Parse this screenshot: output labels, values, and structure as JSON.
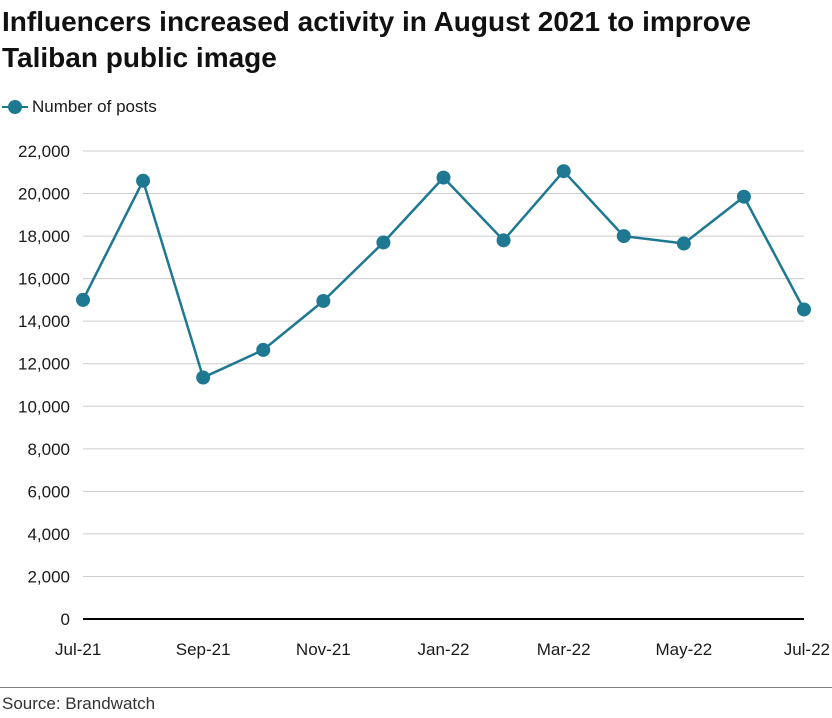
{
  "title": "Influencers increased activity in August 2021 to improve Taliban public image",
  "source": "Source: Brandwatch",
  "colors": {
    "series": "#1f7891",
    "grid": "#cccccc",
    "axis": "#000000",
    "text": "#1a1a1a"
  },
  "chart_data": {
    "type": "line",
    "title": "Influencers increased activity in August 2021 to improve Taliban public image",
    "xlabel": "",
    "ylabel": "",
    "legend": "top-left",
    "grid": true,
    "x": [
      "Jul-21",
      "Aug-21",
      "Sep-21",
      "Oct-21",
      "Nov-21",
      "Dec-21",
      "Jan-22",
      "Feb-22",
      "Mar-22",
      "Apr-22",
      "May-22",
      "Jun-22",
      "Jul-22"
    ],
    "x_tick_labels": [
      "Jul-21",
      "",
      "Sep-21",
      "",
      "Nov-21",
      "",
      "Jan-22",
      "",
      "Mar-22",
      "",
      "May-22",
      "",
      "Jul-22"
    ],
    "ylim": [
      0,
      22000
    ],
    "y_ticks": [
      0,
      2000,
      4000,
      6000,
      8000,
      10000,
      12000,
      14000,
      16000,
      18000,
      20000,
      22000
    ],
    "y_tick_labels": [
      "0",
      "2,000",
      "4,000",
      "6,000",
      "8,000",
      "10,000",
      "12,000",
      "14,000",
      "16,000",
      "18,000",
      "20,000",
      "22,000"
    ],
    "series": [
      {
        "name": "Number of posts",
        "values": [
          15000,
          20600,
          11350,
          12650,
          14950,
          17700,
          20750,
          17800,
          21050,
          18000,
          17650,
          19850,
          14550
        ]
      }
    ]
  }
}
